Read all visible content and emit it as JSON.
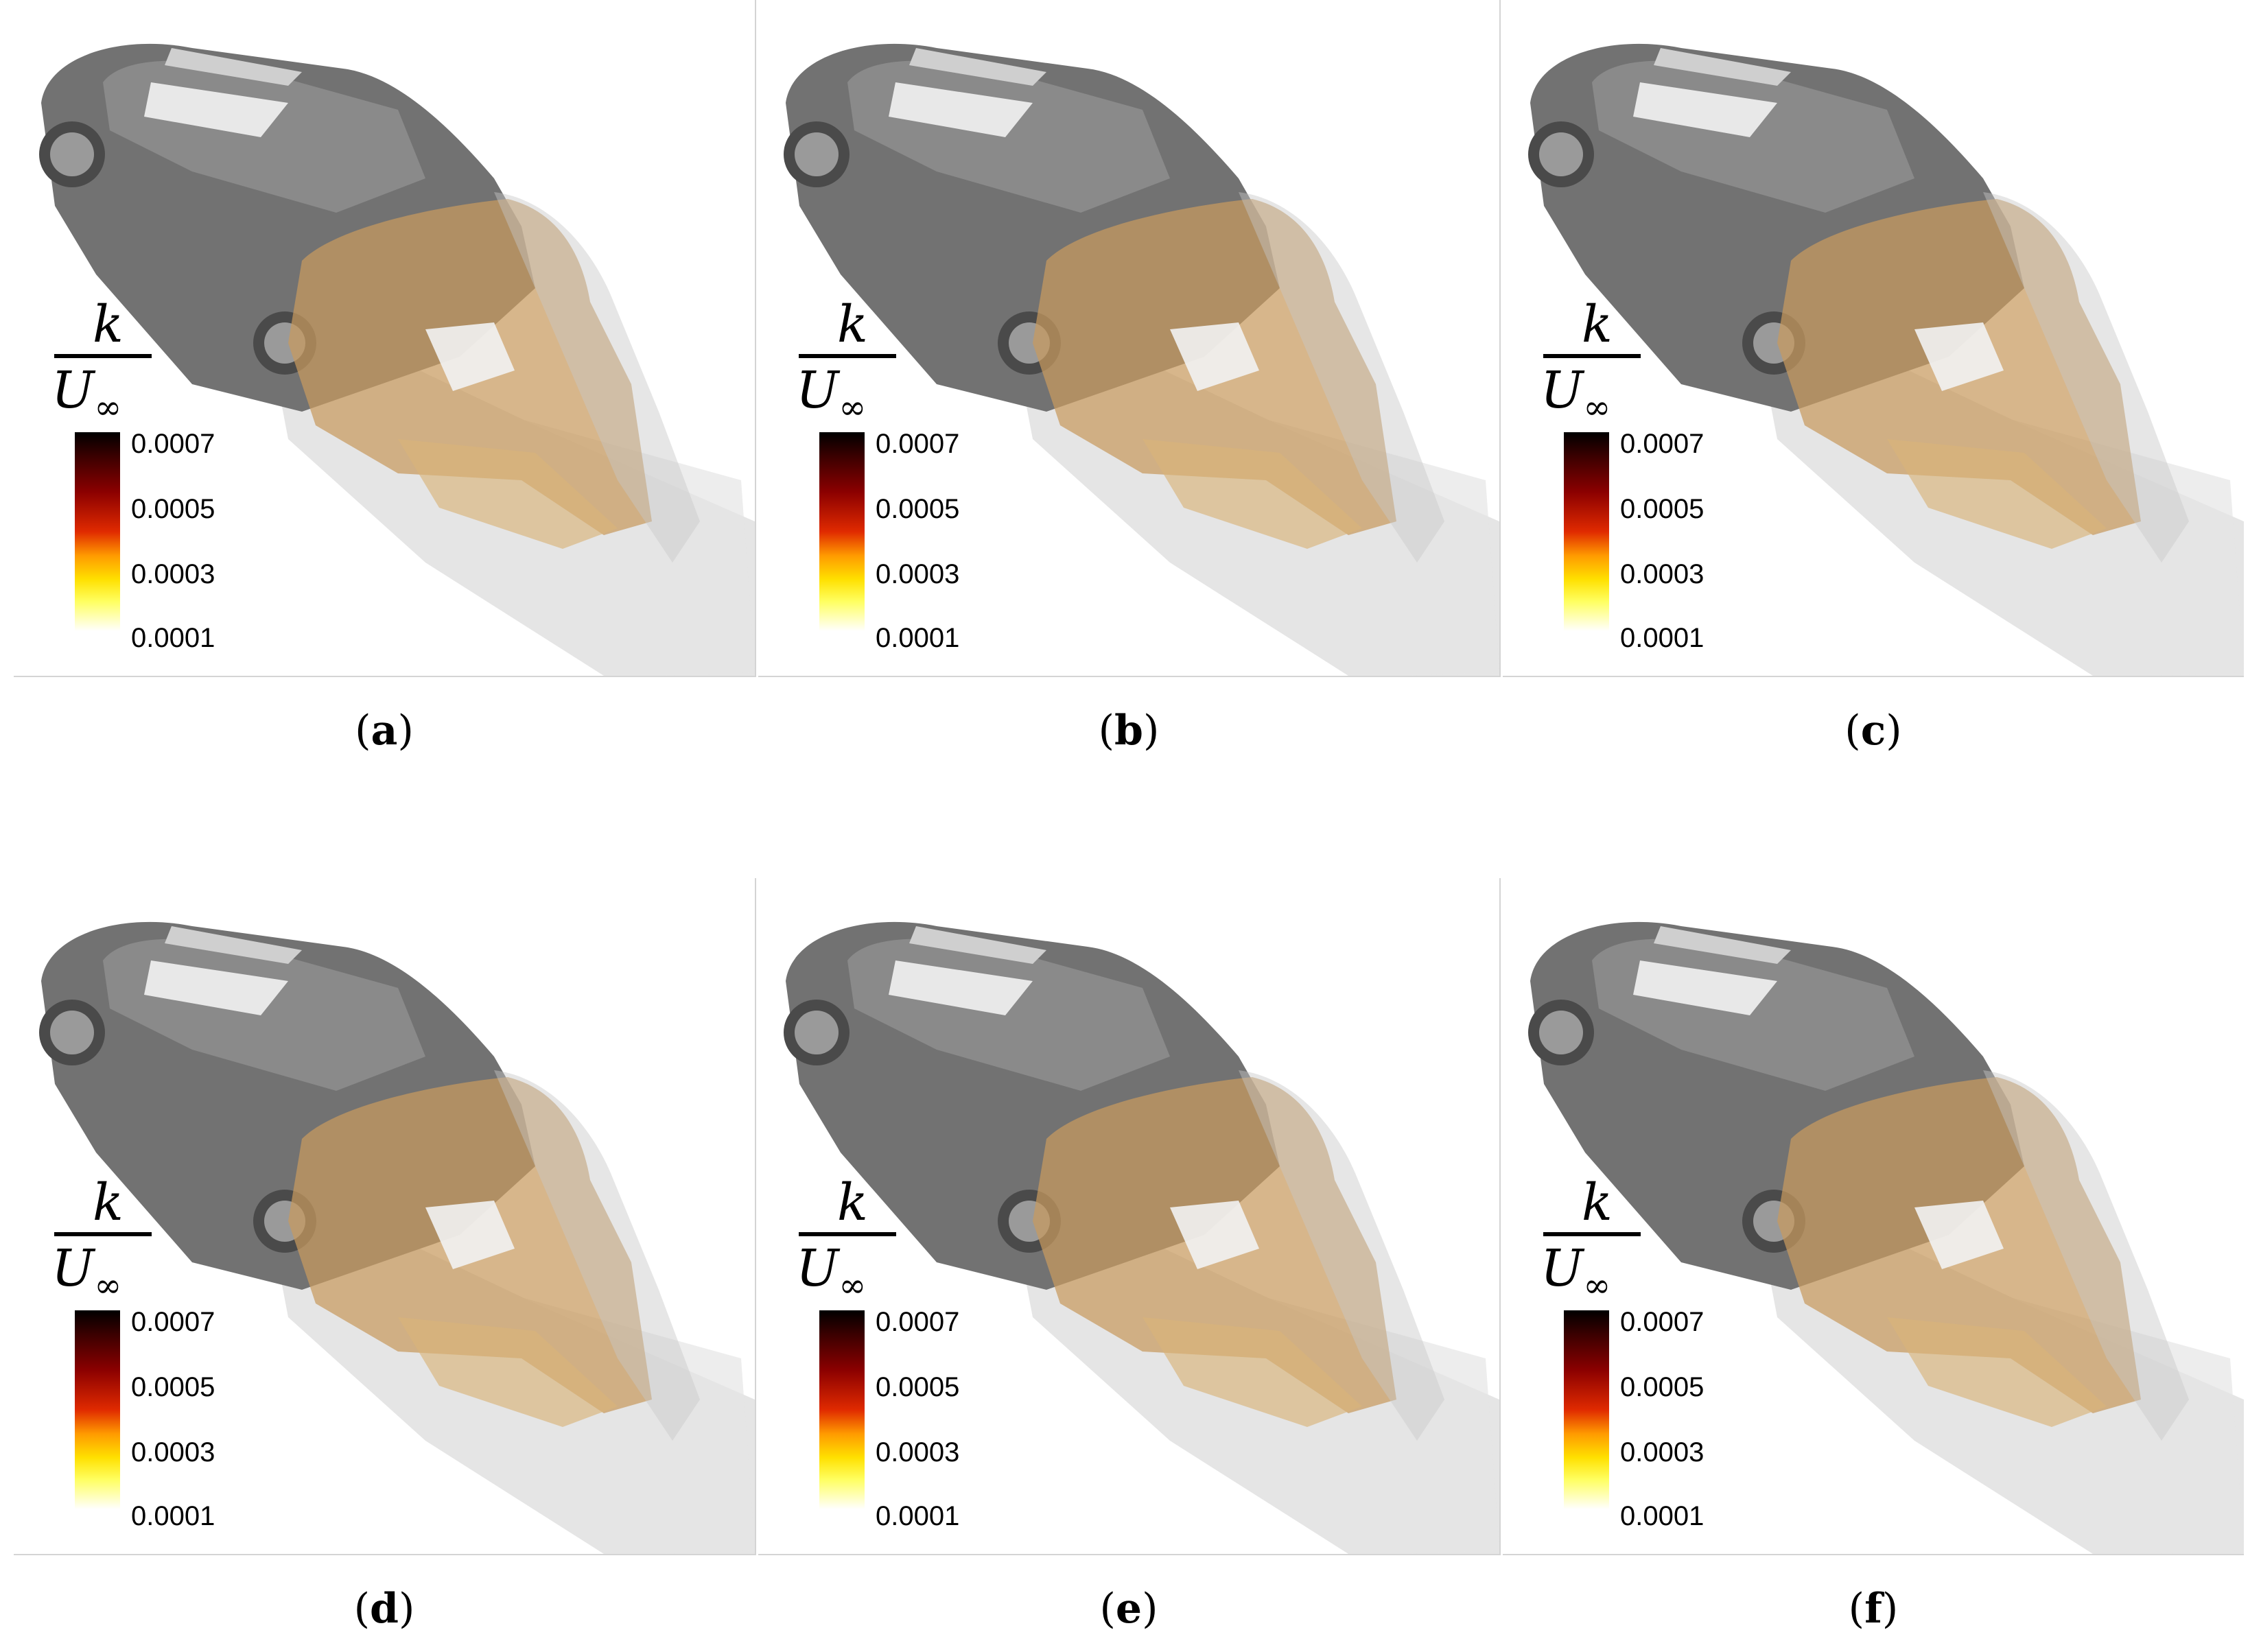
{
  "figure": {
    "legend": {
      "numerator": "k",
      "denominator": "U",
      "denominator_sub": "∞",
      "ticks": [
        "0.0007",
        "0.0005",
        "0.0003",
        "0.0001"
      ]
    },
    "colors": {
      "car_body": "#6e6e6e",
      "isosurface_tan": "#c89a5e",
      "wake_grey": "#d9d9d9"
    },
    "panels": [
      {
        "label": "a"
      },
      {
        "label": "b"
      },
      {
        "label": "c"
      },
      {
        "label": "d"
      },
      {
        "label": "e"
      },
      {
        "label": "f"
      }
    ]
  }
}
